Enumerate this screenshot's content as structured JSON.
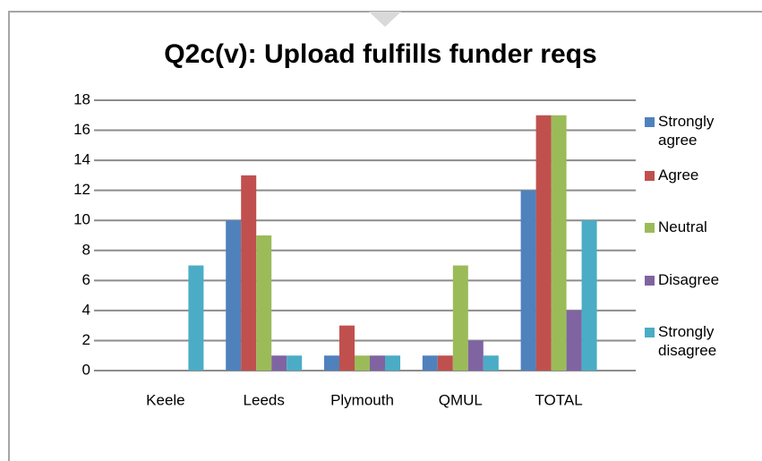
{
  "chart_data": {
    "type": "bar",
    "title": "Q2c(v): Upload fulfills funder reqs",
    "categories": [
      "Keele",
      "Leeds",
      "Plymouth",
      "QMUL",
      "TOTAL"
    ],
    "series": [
      {
        "name": "Strongly agree",
        "color": "#4f81bd",
        "values": [
          0,
          10,
          1,
          1,
          12
        ]
      },
      {
        "name": "Agree",
        "color": "#c0504d",
        "values": [
          0,
          13,
          3,
          1,
          17
        ]
      },
      {
        "name": "Neutral",
        "color": "#9bbb59",
        "values": [
          0,
          9,
          1,
          7,
          17
        ]
      },
      {
        "name": "Disagree",
        "color": "#8064a2",
        "values": [
          0,
          1,
          1,
          2,
          4
        ]
      },
      {
        "name": "Strongly disagree",
        "color": "#4bacc6",
        "values": [
          7,
          1,
          1,
          1,
          10
        ]
      }
    ],
    "ylim": [
      0,
      18
    ],
    "yticks": [
      0,
      2,
      4,
      6,
      8,
      10,
      12,
      14,
      16,
      18
    ],
    "grid": true,
    "legend": "right"
  }
}
